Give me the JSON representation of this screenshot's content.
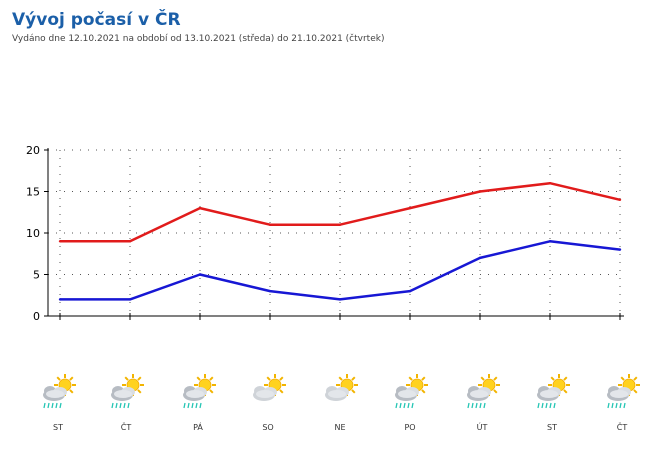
{
  "header": {
    "title": "Vývoj počasí v ČR",
    "subtitle": "Vydáno dne 12.10.2021 na období od 13.10.2021 (středa) do 21.10.2021 (čtvrtek)"
  },
  "chart_data": {
    "type": "line",
    "categories": [
      "ST",
      "ČT",
      "PÁ",
      "SO",
      "NE",
      "PO",
      "ÚT",
      "ST",
      "ČT"
    ],
    "series": [
      {
        "values": [
          9,
          9,
          13,
          11,
          11,
          13,
          15,
          16,
          14
        ],
        "color": "#e11b1b"
      },
      {
        "values": [
          2,
          2,
          5,
          3,
          2,
          3,
          7,
          9,
          8
        ],
        "color": "#1717d4"
      }
    ],
    "ylim": [
      0,
      20
    ],
    "yticks": [
      0,
      5,
      10,
      15,
      20
    ],
    "grid": true,
    "title": "",
    "xlabel": "",
    "ylabel": ""
  },
  "weather_icons": [
    "cloud-sun-rain-icon",
    "cloud-sun-rain-icon",
    "cloud-sun-rain-icon",
    "sun-cloud-icon",
    "sun-cloud-icon",
    "cloud-sun-rain-icon",
    "cloud-sun-rain-icon",
    "cloud-sun-rain-icon",
    "cloud-sun-rain-icon"
  ]
}
